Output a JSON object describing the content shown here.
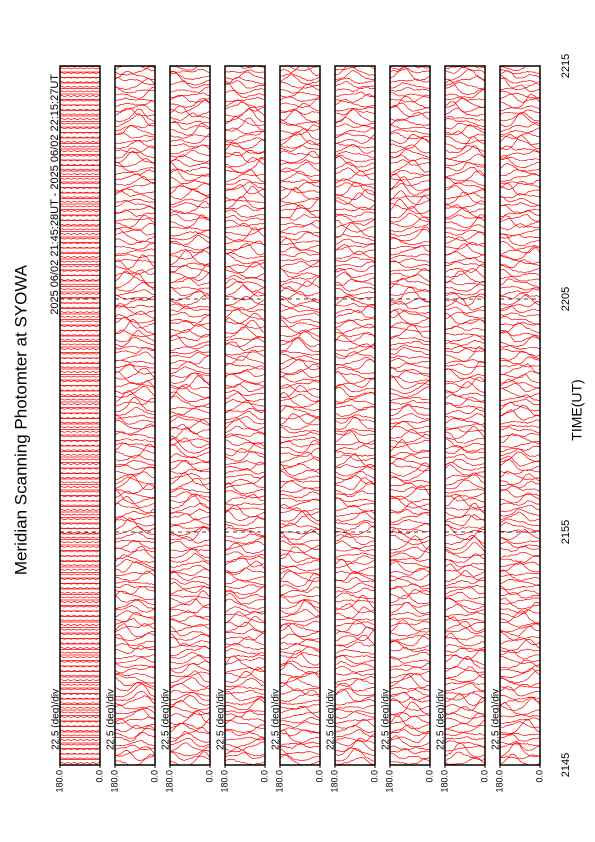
{
  "chart_data": {
    "type": "scan",
    "title": "Meridian Scanning Photomter at SYOWA",
    "subtitle": "2025 06/02 21:45:28UT - 2025 06/02 22:15:27UT",
    "xlabel": "TIME(UT)",
    "xticks": [
      "2145",
      "2155",
      "2205",
      "2215"
    ],
    "color": "#ff0000",
    "panels": [
      {
        "scale": "22.5 (deg)/div",
        "ylim": [
          0,
          180
        ],
        "yticks": [
          {
            "value": 0,
            "label": "0.0"
          },
          {
            "value": 180,
            "label": "180.0"
          }
        ]
      },
      {
        "scale": "22.5 (deg)/div",
        "ylim": [
          0,
          180
        ],
        "yticks": [
          {
            "value": 0,
            "label": "0.0"
          },
          {
            "value": 180,
            "label": "180.0"
          }
        ]
      },
      {
        "scale": "22.5 (deg)/div",
        "ylim": [
          0,
          180
        ],
        "yticks": [
          {
            "value": 0,
            "label": "0.0"
          },
          {
            "value": 180,
            "label": "180.0"
          }
        ]
      },
      {
        "scale": "22.5 (deg)/div",
        "ylim": [
          0,
          180
        ],
        "yticks": [
          {
            "value": 0,
            "label": "0.0"
          },
          {
            "value": 180,
            "label": "180.0"
          }
        ]
      },
      {
        "scale": "22.5 (deg)/div",
        "ylim": [
          0,
          180
        ],
        "yticks": [
          {
            "value": 0,
            "label": "0.0"
          },
          {
            "value": 180,
            "label": "180.0"
          }
        ]
      },
      {
        "scale": "22.5 (deg)/div",
        "ylim": [
          0,
          180
        ],
        "yticks": [
          {
            "value": 0,
            "label": "0.0"
          },
          {
            "value": 180,
            "label": "180.0"
          }
        ]
      },
      {
        "scale": "22.5 (deg)/div",
        "ylim": [
          0,
          180
        ],
        "yticks": [
          {
            "value": 0,
            "label": "0.0"
          },
          {
            "value": 180,
            "label": "180.0"
          }
        ]
      },
      {
        "scale": "22.5 (deg)/div",
        "ylim": [
          0,
          180
        ],
        "yticks": [
          {
            "value": 0,
            "label": "0.0"
          },
          {
            "value": 180,
            "label": "180.0"
          }
        ]
      },
      {
        "scale": "22.5 (deg)/div",
        "ylim": [
          0,
          180
        ],
        "yticks": [
          {
            "value": 0,
            "label": "0.0"
          },
          {
            "value": 180,
            "label": "180.0"
          }
        ]
      }
    ]
  }
}
